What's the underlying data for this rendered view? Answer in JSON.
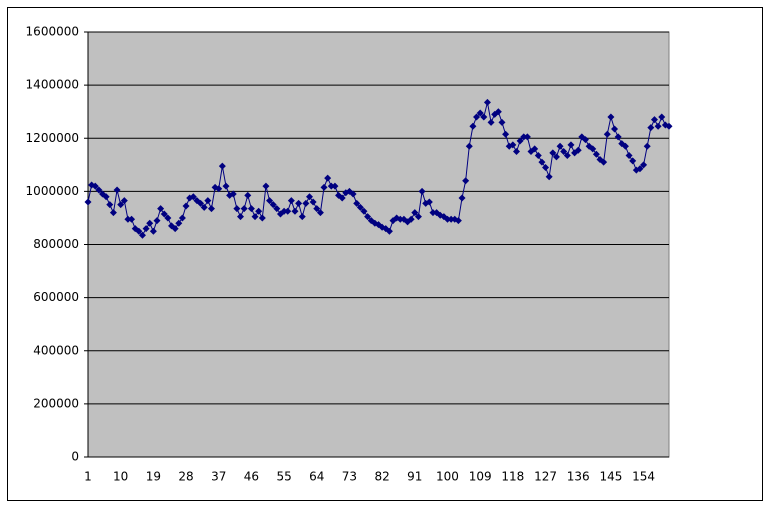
{
  "chart_data": {
    "type": "line",
    "color": "#000080",
    "markers": true,
    "grid": true,
    "ylim": [
      0,
      1600000
    ],
    "yticks": [
      0,
      200000,
      400000,
      600000,
      800000,
      1000000,
      1200000,
      1400000,
      1600000
    ],
    "categories": [
      1,
      null,
      null,
      null,
      null,
      null,
      null,
      null,
      null,
      10,
      null,
      null,
      null,
      null,
      null,
      null,
      null,
      null,
      19,
      null,
      null,
      null,
      null,
      null,
      null,
      null,
      null,
      28,
      null,
      null,
      null,
      null,
      null,
      null,
      null,
      null,
      37,
      null,
      null,
      null,
      null,
      null,
      null,
      null,
      null,
      46,
      null,
      null,
      null,
      null,
      null,
      null,
      null,
      null,
      55,
      null,
      null,
      null,
      null,
      null,
      null,
      null,
      null,
      64,
      null,
      null,
      null,
      null,
      null,
      null,
      null,
      null,
      73,
      null,
      null,
      null,
      null,
      null,
      null,
      null,
      null,
      82,
      null,
      null,
      null,
      null,
      null,
      null,
      null,
      null,
      91,
      null,
      null,
      null,
      null,
      null,
      null,
      null,
      null,
      100,
      null,
      null,
      null,
      null,
      null,
      null,
      null,
      null,
      109,
      null,
      null,
      null,
      null,
      null,
      null,
      null,
      null,
      118,
      null,
      null,
      null,
      null,
      null,
      null,
      null,
      null,
      127,
      null,
      null,
      null,
      null,
      null,
      null,
      null,
      null,
      136,
      null,
      null,
      null,
      null,
      null,
      null,
      null,
      null,
      145,
      null,
      null,
      null,
      null,
      null,
      null,
      null,
      null,
      154,
      null,
      null,
      null,
      null,
      null,
      null,
      null
    ],
    "values": [
      960000,
      1024000,
      1020000,
      1005000,
      990000,
      980000,
      950000,
      920000,
      1005000,
      950000,
      965000,
      895000,
      895000,
      860000,
      850000,
      835000,
      860000,
      880000,
      850000,
      890000,
      935000,
      915000,
      900000,
      870000,
      860000,
      880000,
      900000,
      945000,
      975000,
      980000,
      965000,
      955000,
      940000,
      965000,
      935000,
      1015000,
      1010000,
      1095000,
      1020000,
      985000,
      990000,
      935000,
      905000,
      935000,
      985000,
      935000,
      905000,
      925000,
      900000,
      1020000,
      965000,
      950000,
      935000,
      915000,
      925000,
      925000,
      965000,
      925000,
      955000,
      905000,
      955000,
      980000,
      960000,
      935000,
      920000,
      1015000,
      1050000,
      1020000,
      1020000,
      985000,
      975000,
      995000,
      1000000,
      990000,
      955000,
      940000,
      925000,
      905000,
      890000,
      880000,
      875000,
      865000,
      860000,
      850000,
      890000,
      900000,
      895000,
      895000,
      885000,
      895000,
      920000,
      905000,
      1000000,
      955000,
      960000,
      920000,
      920000,
      910000,
      905000,
      895000,
      895000,
      895000,
      890000,
      975000,
      1040000,
      1170000,
      1245000,
      1280000,
      1295000,
      1280000,
      1335000,
      1260000,
      1290000,
      1300000,
      1260000,
      1215000,
      1170000,
      1175000,
      1150000,
      1190000,
      1205000,
      1205000,
      1150000,
      1160000,
      1135000,
      1110000,
      1090000,
      1055000,
      1145000,
      1130000,
      1170000,
      1150000,
      1135000,
      1175000,
      1145000,
      1155000,
      1205000,
      1195000,
      1170000,
      1160000,
      1140000,
      1120000,
      1110000,
      1215000,
      1280000,
      1235000,
      1205000,
      1180000,
      1170000,
      1135000,
      1115000,
      1080000,
      1085000,
      1100000,
      1170000,
      1240000,
      1270000,
      1245000,
      1280000,
      1250000,
      1245000
    ]
  }
}
